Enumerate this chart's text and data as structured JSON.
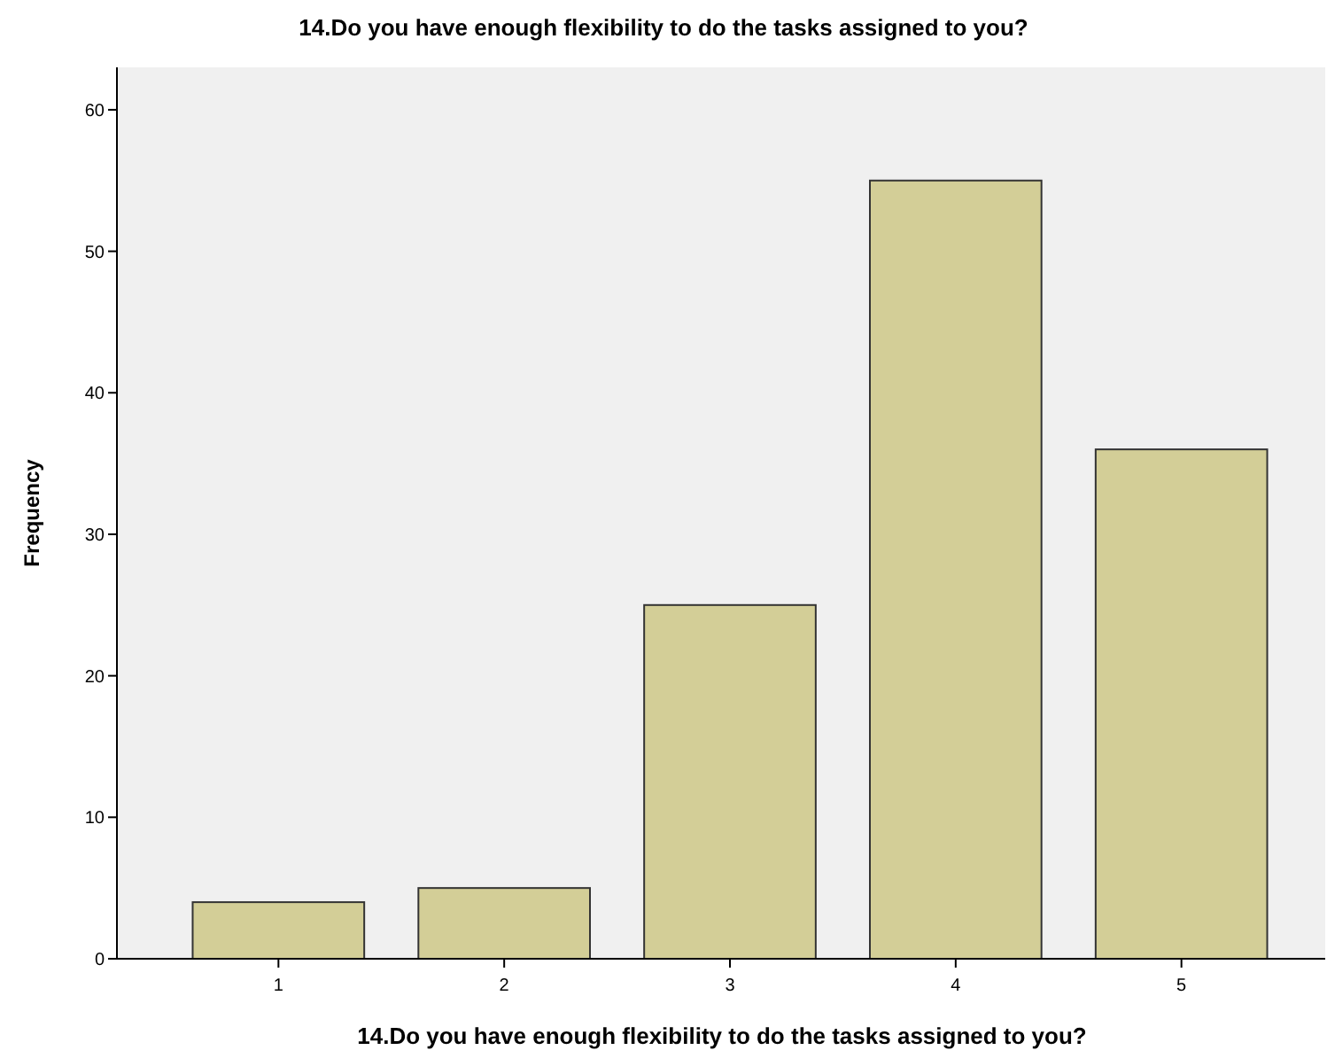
{
  "chart_data": {
    "type": "bar",
    "title": "14.Do you have enough flexibility to do the tasks assigned to you?",
    "xlabel": "14.Do you have enough flexibility to do the tasks assigned to you?",
    "ylabel": "Frequency",
    "categories": [
      "1",
      "2",
      "3",
      "4",
      "5"
    ],
    "values": [
      4,
      5,
      25,
      55,
      36
    ],
    "color": "#d3ce97",
    "ylim": [
      0,
      63
    ],
    "yticks": [
      0,
      10,
      20,
      30,
      40,
      50,
      60
    ],
    "grid": false
  }
}
